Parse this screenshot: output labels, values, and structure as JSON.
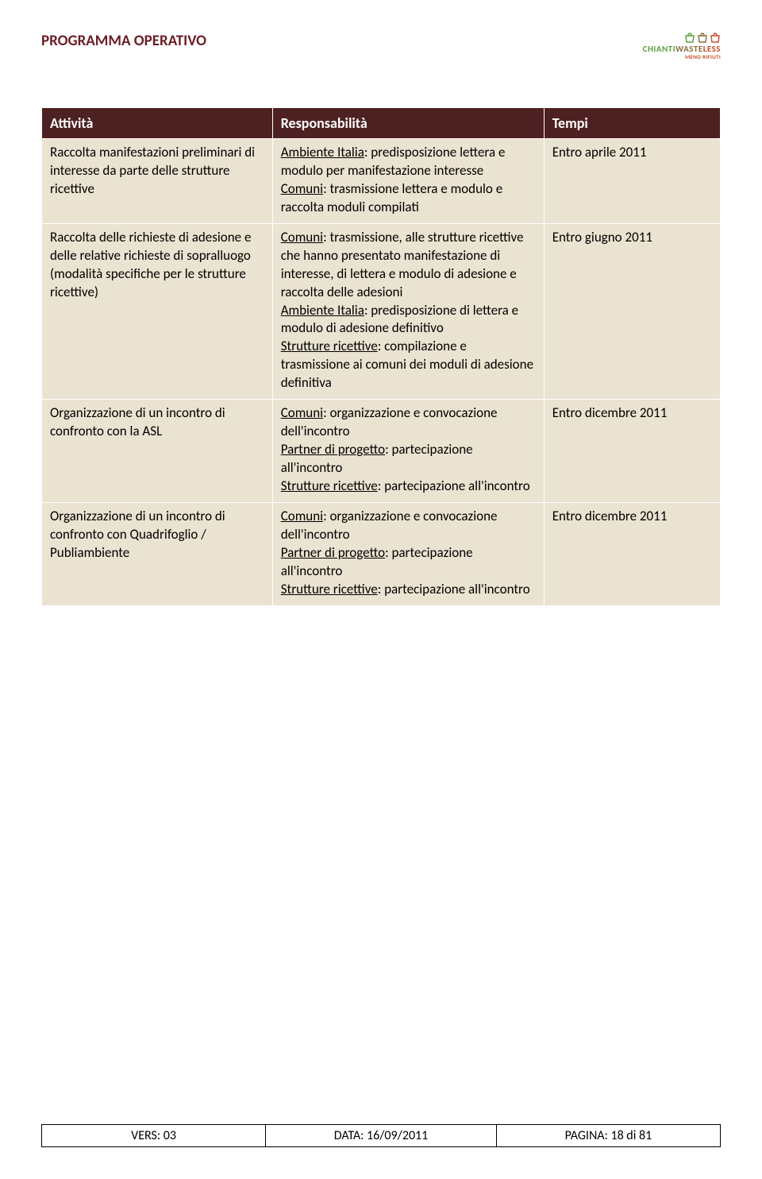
{
  "header": {
    "title": "PROGRAMMA OPERATIVO",
    "logo_main_c1": "CHIANTI",
    "logo_main_c2": "WASTE",
    "logo_main_c3": "LESS",
    "logo_sub": "MENO RIFIUTI"
  },
  "table": {
    "headers": [
      "Attività",
      "Responsabilità",
      "Tempi"
    ],
    "header_bg": "#4d2121",
    "header_color": "#ffffff",
    "cell_bg": "#eae3d1",
    "col_widths": [
      "34%",
      "40%",
      "26%"
    ],
    "rows": [
      {
        "attivita": "Raccolta manifestazioni preliminari di interesse da parte delle strutture ricettive",
        "resp": [
          {
            "u": "Ambiente Italia",
            "t": ": predisposizione lettera e modulo per manifestazione interesse"
          },
          {
            "u": "Comuni",
            "t": ": trasmissione lettera e modulo e raccolta moduli compilati"
          }
        ],
        "tempi": "Entro aprile 2011"
      },
      {
        "attivita": "Raccolta delle richieste di adesione e delle relative richieste di sopralluogo (modalità specifiche per le strutture ricettive)",
        "resp": [
          {
            "u": "Comuni",
            "t": ": trasmissione, alle strutture ricettive che hanno presentato manifestazione di interesse, di lettera e modulo di adesione e raccolta delle adesioni"
          },
          {
            "u": "Ambiente Italia",
            "t": ": predisposizione di lettera e modulo di adesione definitivo"
          },
          {
            "u": "Strutture ricettive",
            "t": ": compilazione e trasmissione ai comuni dei moduli di adesione definitiva"
          }
        ],
        "tempi": "Entro giugno 2011"
      },
      {
        "attivita": "Organizzazione di un incontro di confronto con la ASL",
        "resp": [
          {
            "u": "Comuni",
            "t": ": organizzazione e convocazione dell'incontro"
          },
          {
            "u": "Partner di progetto",
            "t": ": partecipazione all'incontro"
          },
          {
            "u": "Strutture ricettive",
            "t": ": partecipazione all'incontro"
          }
        ],
        "tempi": "Entro dicembre 2011"
      },
      {
        "attivita": "Organizzazione di un incontro di confronto con Quadrifoglio / Publiambiente",
        "resp": [
          {
            "u": "Comuni",
            "t": ": organizzazione e convocazione dell'incontro"
          },
          {
            "u": "Partner di progetto",
            "t": ": partecipazione all'incontro"
          },
          {
            "u": "Strutture ricettive",
            "t": ": partecipazione all'incontro"
          }
        ],
        "tempi": "Entro dicembre 2011"
      }
    ]
  },
  "footer": {
    "vers_label": "VERS:",
    "vers_value": "03",
    "data_label": "DATA:",
    "data_value": "16/09/2011",
    "pagina_label": "PAGINA:",
    "pagina_value": "18 di 81"
  },
  "colors": {
    "title_color": "#6a1d25",
    "logo_green": "#5aa03f",
    "logo_brown": "#8a6d3b",
    "logo_orange": "#c84b2b",
    "background": "#ffffff",
    "text": "#000000"
  },
  "fonts": {
    "body_family": "Calibri, Arial, sans-serif",
    "title_size_pt": 14,
    "header_size_pt": 13,
    "body_size_pt": 12
  }
}
